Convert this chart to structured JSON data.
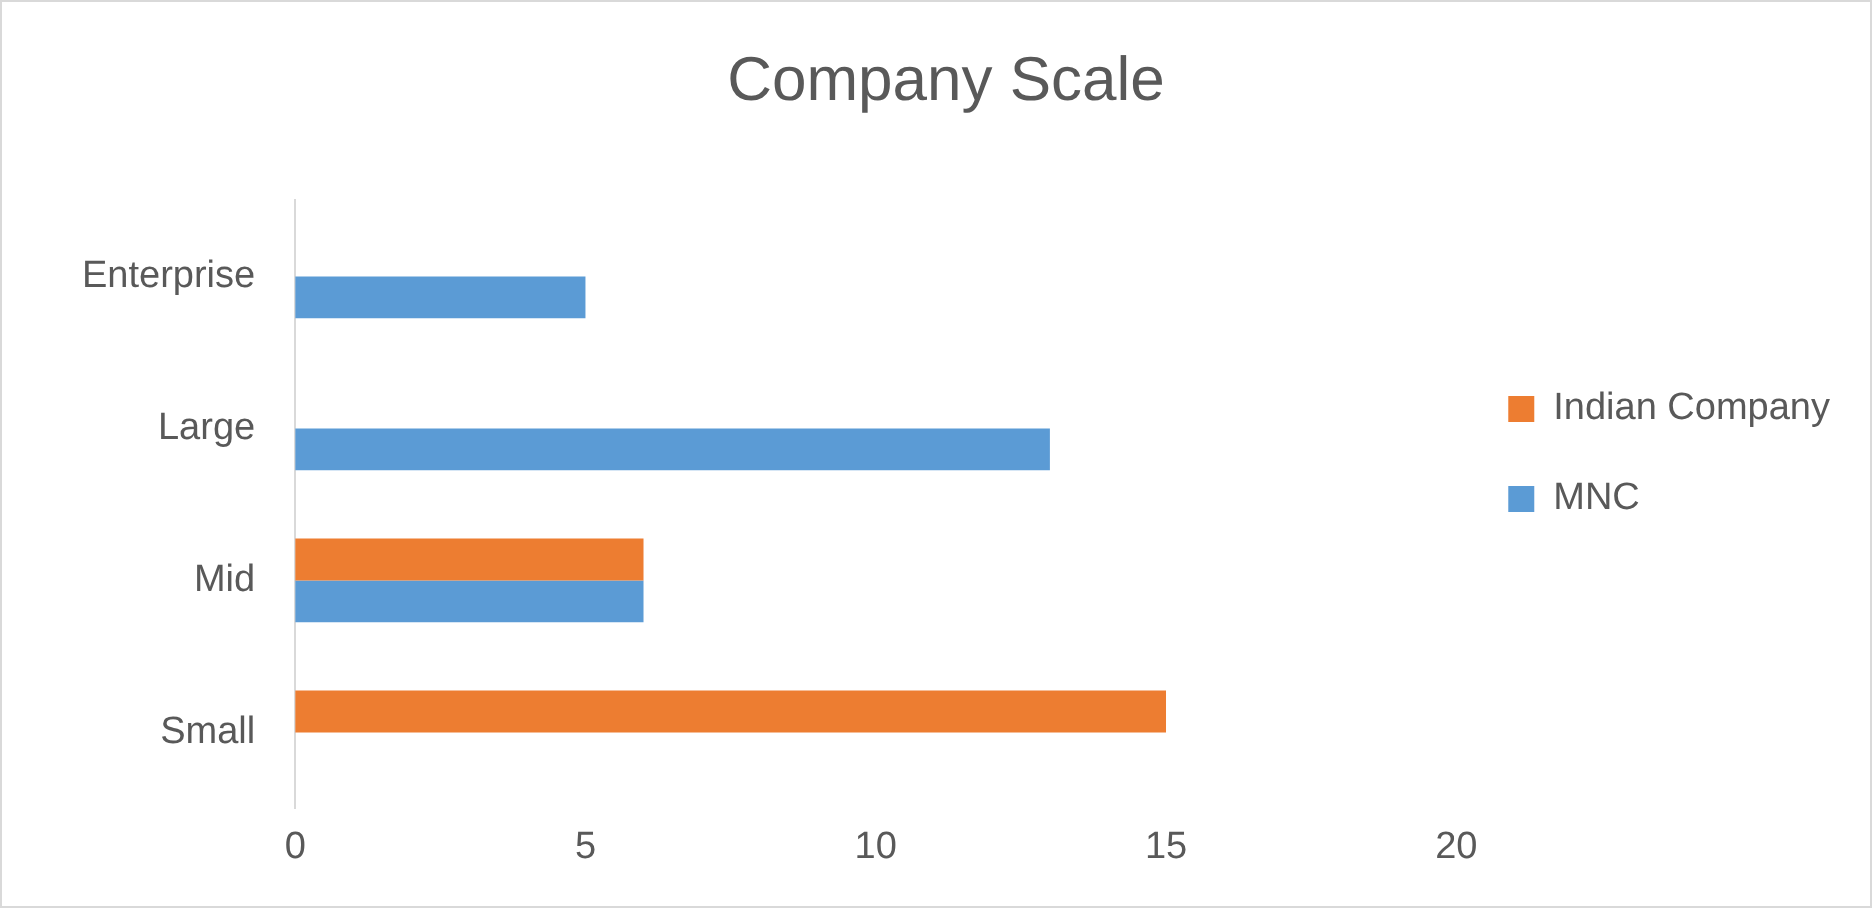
{
  "chart_data": {
    "type": "bar",
    "orientation": "horizontal",
    "title": "Company Scale",
    "categories": [
      "Enterprise",
      "Large",
      "Mid",
      "Small"
    ],
    "series": [
      {
        "name": "Indian Company",
        "color": "#ed7d31",
        "values": [
          null,
          null,
          6,
          15
        ]
      },
      {
        "name": "MNC",
        "color": "#5b9bd5",
        "values": [
          5,
          13,
          6,
          null
        ]
      }
    ],
    "xlim": [
      0,
      20
    ],
    "xticks": [
      0,
      5,
      10,
      15,
      20
    ],
    "grid": false,
    "legend": "right"
  }
}
